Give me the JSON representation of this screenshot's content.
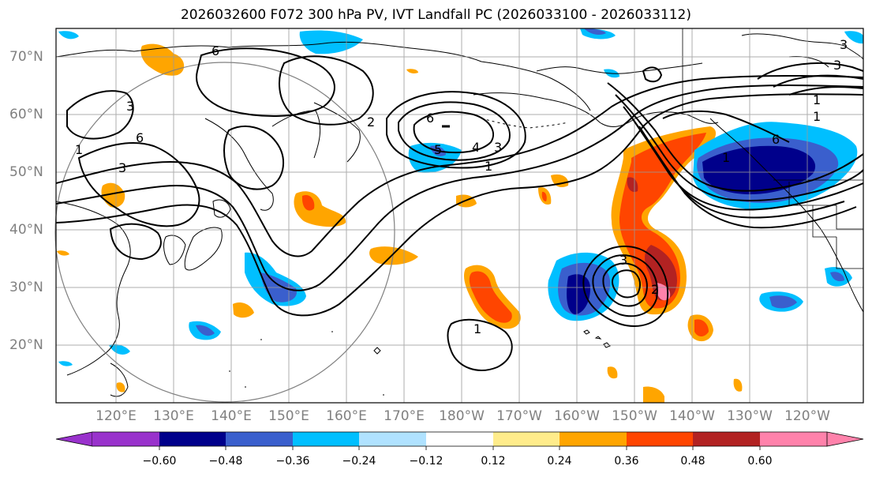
{
  "title": "2026032600 F072 300 hPa PV, IVT Landfall PC (2026033100 - 2026033112)",
  "lat_labels": [
    "70°N",
    "60°N",
    "50°N",
    "40°N",
    "30°N",
    "20°N"
  ],
  "lon_labels": [
    "120°E",
    "130°E",
    "140°E",
    "150°E",
    "160°E",
    "170°E",
    "180°W",
    "170°W",
    "160°W",
    "150°W",
    "140°W",
    "130°W",
    "120°W"
  ],
  "colorbar": {
    "tick_labels": [
      "−0.60",
      "−0.48",
      "−0.36",
      "−0.24",
      "−0.12",
      "0.12",
      "0.24",
      "0.36",
      "0.48",
      "0.60"
    ],
    "colors": [
      "#9932cc",
      "#00008b",
      "#3a5fcd",
      "#00bfff",
      "#b0e2ff",
      "#ffffff",
      "#ffec8b",
      "#ffa500",
      "#ff4500",
      "#b22222",
      "#ff82ab"
    ]
  },
  "contour_labels": [
    "3",
    "6",
    "3",
    "1",
    "6",
    "5",
    "4",
    "3",
    "1",
    "6",
    "1",
    "3",
    "1",
    "6",
    "2",
    "3",
    "1",
    "1",
    "3",
    "2"
  ]
}
